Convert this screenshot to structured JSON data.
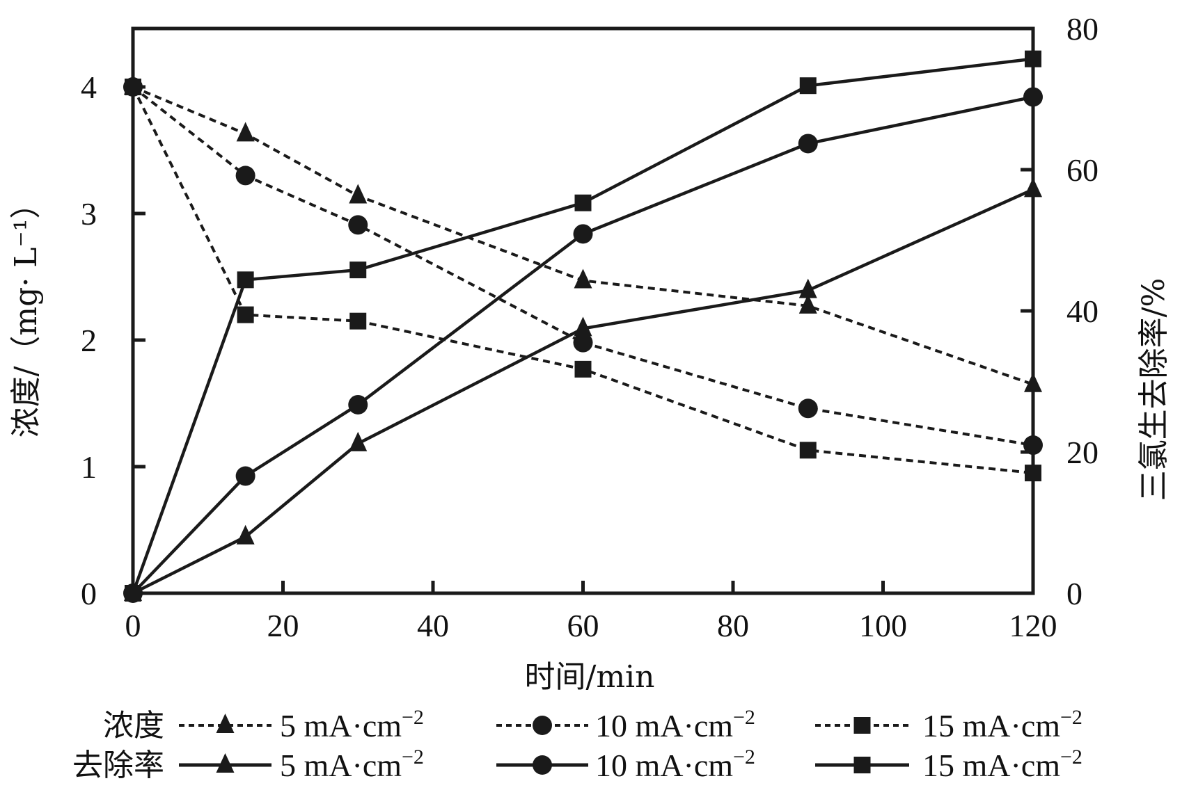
{
  "chart_data": {
    "type": "line",
    "title": "",
    "xlabel": "时间/min",
    "ylabel_left": "浓度/（mg· L⁻¹）",
    "ylabel_right": "三氯生去除率/%",
    "xlim": [
      0,
      120
    ],
    "ylim_left": [
      0,
      4.4
    ],
    "ylim_right": [
      0,
      80
    ],
    "x_ticks": [
      0,
      20,
      40,
      60,
      80,
      100,
      120
    ],
    "y_left_ticks": [
      0,
      1,
      2,
      3,
      4
    ],
    "y_right_ticks": [
      0,
      20,
      40,
      60,
      80
    ],
    "grid": false,
    "legend_placement": "bottom",
    "x": [
      0,
      15,
      30,
      60,
      90,
      120
    ],
    "series": [
      {
        "name": "浓度 5 mA·cm⁻²",
        "group": "浓度",
        "axis": "left",
        "marker": "triangle",
        "style": "dashed",
        "values": [
          4.0,
          3.63,
          3.14,
          2.47,
          2.27,
          1.65
        ]
      },
      {
        "name": "浓度 10 mA·cm⁻²",
        "group": "浓度",
        "axis": "left",
        "marker": "circle",
        "style": "dashed",
        "values": [
          4.0,
          3.3,
          2.91,
          1.98,
          1.46,
          1.17
        ]
      },
      {
        "name": "浓度 15 mA·cm⁻²",
        "group": "浓度",
        "axis": "left",
        "marker": "square",
        "style": "dashed",
        "values": [
          4.0,
          2.2,
          2.15,
          1.77,
          1.13,
          0.95
        ]
      },
      {
        "name": "去除率 5 mA·cm⁻²",
        "group": "去除率",
        "axis": "right",
        "marker": "triangle",
        "style": "solid",
        "values": [
          0,
          8.0,
          21.2,
          37.5,
          42.9,
          57.2
        ]
      },
      {
        "name": "去除率 10 mA·cm⁻²",
        "group": "去除率",
        "axis": "right",
        "marker": "circle",
        "style": "solid",
        "values": [
          0,
          16.6,
          26.7,
          50.9,
          63.7,
          70.3
        ]
      },
      {
        "name": "去除率 15 mA·cm⁻²",
        "group": "去除率",
        "axis": "right",
        "marker": "square",
        "style": "solid",
        "values": [
          0,
          44.4,
          45.8,
          55.3,
          71.9,
          75.7
        ]
      }
    ],
    "legend": {
      "row_labels": [
        "浓度",
        "去除率"
      ],
      "entries": [
        {
          "label": "5 mA·cm",
          "sup": "−2",
          "marker": "triangle"
        },
        {
          "label": "10 mA·cm",
          "sup": "−2",
          "marker": "circle"
        },
        {
          "label": "15 mA·cm",
          "sup": "−2",
          "marker": "square"
        }
      ]
    },
    "colors": {
      "ink": "#1a1a1a",
      "background": "#ffffff"
    }
  }
}
